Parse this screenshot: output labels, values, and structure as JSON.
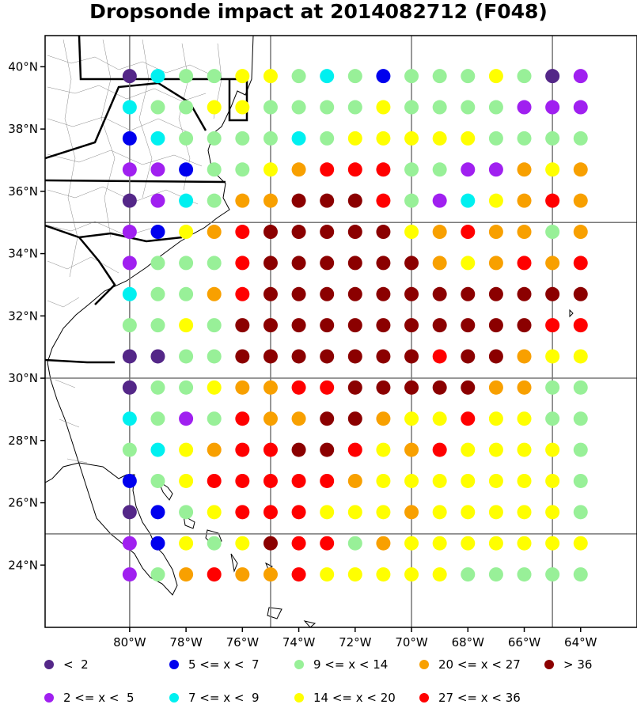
{
  "title": "Dropsonde impact at 2014082712 (F048)",
  "axes": {
    "x_ticks": [
      -80,
      -78,
      -76,
      -74,
      -72,
      -70,
      -68,
      -66,
      -64
    ],
    "x_labels": [
      "80°W",
      "78°W",
      "76°W",
      "74°W",
      "72°W",
      "70°W",
      "68°W",
      "66°W",
      "64°W"
    ],
    "y_ticks": [
      40,
      38,
      36,
      34,
      32,
      30,
      28,
      26,
      24
    ],
    "y_labels": [
      "40°N",
      "38°N",
      "36°N",
      "34°N",
      "32°N",
      "30°N",
      "28°N",
      "26°N",
      "24°N"
    ],
    "lon_range": [
      -83,
      -62
    ],
    "lat_range": [
      22,
      41
    ],
    "grid_lons": [
      -80,
      -75,
      -70,
      -65
    ],
    "grid_lats": [
      35,
      30,
      25
    ]
  },
  "legend": [
    {
      "label": "<  2",
      "color": "#542788"
    },
    {
      "label": "2 <= x <  5",
      "color": "#a020f0"
    },
    {
      "label": "5 <= x <  7",
      "color": "#0000ee"
    },
    {
      "label": "7 <= x <  9",
      "color": "#00f0f0"
    },
    {
      "label": "9 <= x < 14",
      "color": "#98f098"
    },
    {
      "label": "14 <= x < 20",
      "color": "#ffff00"
    },
    {
      "label": "20 <= x < 27",
      "color": "#f8a000"
    },
    {
      "label": "27 <= x < 36",
      "color": "#ff0000"
    },
    {
      "label": "> 36",
      "color": "#8b0000"
    }
  ],
  "chart_data": {
    "type": "scatter",
    "lons": [
      -80,
      -79,
      -78,
      -77,
      -76,
      -75,
      -74,
      -73,
      -72,
      -71,
      -70,
      -69,
      -68,
      -67,
      -66,
      -65,
      -64
    ],
    "lats": [
      39.7,
      38.7,
      37.7,
      36.7,
      35.7,
      34.7,
      33.7,
      32.7,
      31.7,
      30.7,
      29.7,
      28.7,
      27.7,
      26.7,
      25.7,
      24.7,
      23.7
    ],
    "category_key": "index into legend (0:<2, 1:2-5, 2:5-7, 3:7-9, 4:9-14, 5:14-20, 6:20-27, 7:27-36, 8:>36)",
    "rows": [
      [
        0,
        3,
        4,
        4,
        5,
        5,
        4,
        3,
        4,
        2,
        4,
        4,
        4,
        5,
        4,
        0,
        1
      ],
      [
        3,
        4,
        4,
        5,
        5,
        4,
        4,
        4,
        4,
        5,
        4,
        4,
        4,
        4,
        1,
        1,
        1
      ],
      [
        2,
        3,
        4,
        4,
        4,
        4,
        3,
        4,
        5,
        5,
        5,
        5,
        5,
        4,
        4,
        4,
        4
      ],
      [
        1,
        1,
        2,
        4,
        4,
        5,
        6,
        7,
        7,
        7,
        4,
        4,
        1,
        1,
        6,
        5,
        6
      ],
      [
        0,
        1,
        3,
        4,
        6,
        6,
        8,
        8,
        8,
        7,
        4,
        1,
        3,
        5,
        6,
        7,
        6
      ],
      [
        1,
        2,
        5,
        6,
        7,
        8,
        8,
        8,
        8,
        8,
        5,
        6,
        7,
        6,
        6,
        4,
        6
      ],
      [
        1,
        4,
        4,
        4,
        7,
        8,
        8,
        8,
        8,
        8,
        8,
        6,
        5,
        6,
        7,
        6,
        7
      ],
      [
        3,
        4,
        4,
        6,
        7,
        8,
        8,
        8,
        8,
        8,
        8,
        8,
        8,
        8,
        8,
        8,
        8
      ],
      [
        4,
        4,
        5,
        4,
        8,
        8,
        8,
        8,
        8,
        8,
        8,
        8,
        8,
        8,
        8,
        7,
        7
      ],
      [
        0,
        0,
        4,
        4,
        8,
        8,
        8,
        8,
        8,
        8,
        8,
        7,
        8,
        8,
        6,
        5,
        5
      ],
      [
        0,
        4,
        4,
        5,
        6,
        6,
        7,
        7,
        8,
        8,
        8,
        8,
        8,
        6,
        6,
        4,
        4
      ],
      [
        3,
        4,
        1,
        4,
        7,
        6,
        6,
        8,
        8,
        6,
        5,
        5,
        7,
        5,
        5,
        4,
        4
      ],
      [
        4,
        3,
        5,
        6,
        7,
        7,
        8,
        8,
        7,
        5,
        6,
        7,
        5,
        5,
        5,
        5,
        4
      ],
      [
        2,
        4,
        5,
        7,
        7,
        7,
        7,
        7,
        6,
        5,
        5,
        5,
        5,
        5,
        5,
        5,
        4
      ],
      [
        0,
        2,
        4,
        5,
        7,
        7,
        7,
        5,
        5,
        5,
        6,
        5,
        5,
        5,
        5,
        5,
        4
      ],
      [
        1,
        2,
        5,
        4,
        5,
        8,
        7,
        7,
        4,
        6,
        5,
        5,
        5,
        5,
        5,
        5,
        5
      ],
      [
        1,
        4,
        6,
        7,
        6,
        6,
        7,
        5,
        5,
        5,
        5,
        5,
        4,
        4,
        4,
        4,
        4
      ]
    ]
  }
}
